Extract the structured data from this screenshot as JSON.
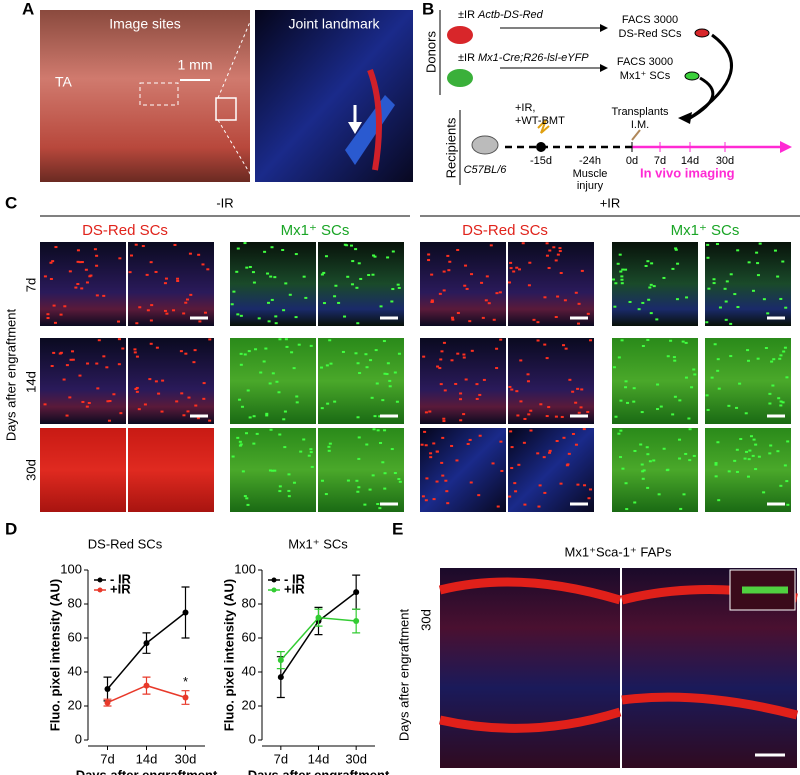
{
  "panel_labels": [
    "A",
    "B",
    "C",
    "D",
    "E"
  ],
  "panel_a": {
    "left_title": "Image sites",
    "right_title": "Joint landmark",
    "muscle": "TA",
    "scale": "1 mm"
  },
  "panel_b": {
    "donors": "Donors",
    "donor1_ir": "±IR",
    "donor1_strain": "Actb-DS-Red",
    "donor2_ir": "±IR",
    "donor2_strain": "Mx1-Cre;R26-lsl-eYFP",
    "facs1": [
      "FACS 3000",
      "DS-Red SCs"
    ],
    "facs2": [
      "FACS 3000",
      "Mx1⁺ SCs"
    ],
    "recipients": "Recipients",
    "recipient_strain": "C57BL/6",
    "treatment": [
      "+IR,",
      "+WT-BMT"
    ],
    "transplant": [
      "Transplants",
      "I.M."
    ],
    "timeline": [
      "-15d",
      "-24h",
      "0d",
      "7d",
      "14d",
      "30d"
    ],
    "injury": [
      "Muscle",
      "injury"
    ],
    "imaging": "In vivo imaging"
  },
  "panel_c": {
    "groups": [
      "-IR",
      "+IR"
    ],
    "columns": [
      "DS-Red SCs",
      "Mx1⁺ SCs",
      "DS-Red SCs",
      "Mx1⁺ SCs"
    ],
    "row_axis": "Days after engraftment",
    "rows": [
      "7d",
      "14d",
      "30d"
    ]
  },
  "chart_data": [
    {
      "type": "line",
      "title": "DS-Red SCs",
      "y_label": "Fluo. pixel intensity (AU)",
      "x_label": "Days after engraftment",
      "categories": [
        "7d",
        "14d",
        "30d"
      ],
      "ylim": [
        0,
        100
      ],
      "yticks": [
        0,
        20,
        40,
        60,
        80,
        100
      ],
      "legend": "upper-left",
      "series": [
        {
          "name": "- IR",
          "color": "#000000",
          "values": [
            30,
            57,
            75
          ],
          "errors": [
            7,
            6,
            15
          ]
        },
        {
          "name": "+IR",
          "color": "#e8392a",
          "values": [
            22,
            32,
            25
          ],
          "errors": [
            2,
            5,
            4
          ]
        }
      ],
      "annotation": "*"
    },
    {
      "type": "line",
      "title": "Mx1⁺ SCs",
      "y_label": "Fluo. pixel intensity (AU)",
      "x_label": "Days after engraftment",
      "categories": [
        "7d",
        "14d",
        "30d"
      ],
      "ylim": [
        0,
        100
      ],
      "yticks": [
        0,
        20,
        40,
        60,
        80,
        100
      ],
      "legend": "upper-left",
      "series": [
        {
          "name": "- IR",
          "color": "#000000",
          "values": [
            37,
            70,
            87
          ],
          "errors": [
            12,
            8,
            10
          ]
        },
        {
          "name": "+IR",
          "color": "#33cc33",
          "values": [
            47,
            72,
            70
          ],
          "errors": [
            5,
            5,
            7
          ]
        }
      ]
    }
  ],
  "panel_e": {
    "title": "Mx1⁺Sca-1⁺ FAPs",
    "row_axis": "Days after engraftment",
    "row": "30d"
  }
}
